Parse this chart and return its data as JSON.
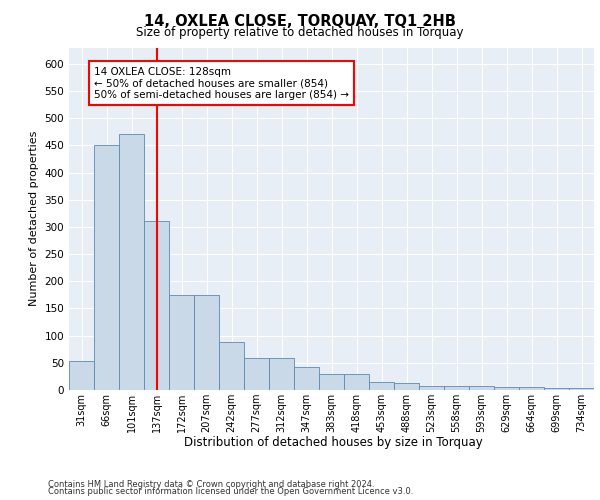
{
  "title": "14, OXLEA CLOSE, TORQUAY, TQ1 2HB",
  "subtitle": "Size of property relative to detached houses in Torquay",
  "xlabel": "Distribution of detached houses by size in Torquay",
  "ylabel": "Number of detached properties",
  "categories": [
    "31sqm",
    "66sqm",
    "101sqm",
    "137sqm",
    "172sqm",
    "207sqm",
    "242sqm",
    "277sqm",
    "312sqm",
    "347sqm",
    "383sqm",
    "418sqm",
    "453sqm",
    "488sqm",
    "523sqm",
    "558sqm",
    "593sqm",
    "629sqm",
    "664sqm",
    "699sqm",
    "734sqm"
  ],
  "values": [
    53,
    450,
    470,
    310,
    175,
    175,
    88,
    58,
    58,
    43,
    30,
    30,
    15,
    12,
    8,
    8,
    8,
    6,
    6,
    4,
    3
  ],
  "bar_color": "#c9d9e8",
  "bar_edge_color": "#5b8ab5",
  "vline_x": 3,
  "vline_color": "red",
  "annotation_text": "14 OXLEA CLOSE: 128sqm\n← 50% of detached houses are smaller (854)\n50% of semi-detached houses are larger (854) →",
  "annotation_box_color": "white",
  "annotation_box_edge_color": "red",
  "ylim": [
    0,
    630
  ],
  "yticks": [
    0,
    50,
    100,
    150,
    200,
    250,
    300,
    350,
    400,
    450,
    500,
    550,
    600
  ],
  "background_color": "#e8eef5",
  "footer_line1": "Contains HM Land Registry data © Crown copyright and database right 2024.",
  "footer_line2": "Contains public sector information licensed under the Open Government Licence v3.0."
}
